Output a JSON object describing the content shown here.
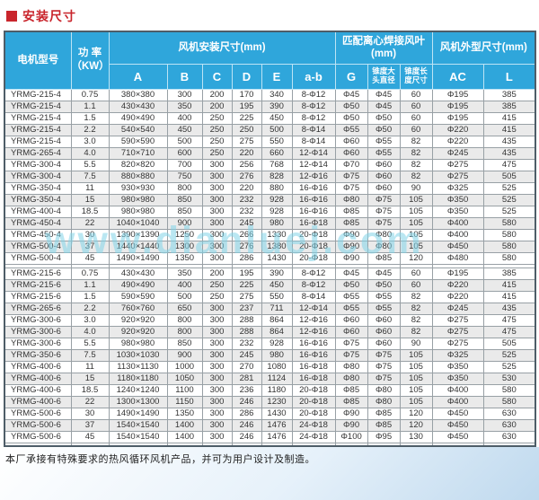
{
  "page": {
    "title": "安装尺寸",
    "watermark": "www.dianluej.com",
    "footer_note": "本厂承接有特殊要求的热风循环风机产品，并可为用户设计及制造。"
  },
  "colors": {
    "header_bg": "#2FA6DB",
    "title_red": "#C9252C",
    "row_alt": "#EAEAEA",
    "outer_border": "#4E5D68",
    "watermark": "#82D4E8"
  },
  "table": {
    "header": {
      "motor_model": "电机型号",
      "power": "功 率\n（KW）",
      "group_install": "风机安装尺寸(mm)",
      "group_blade": "匹配离心焊接风叶\n(mm)",
      "group_outline": "风机外型尺寸(mm)",
      "sub": [
        "A",
        "B",
        "C",
        "D",
        "E",
        "a-b",
        "G",
        "锥度大头直径",
        "锥度长度尺寸",
        "AC",
        "L"
      ]
    },
    "column_keys": [
      "model",
      "power",
      "A",
      "B",
      "C",
      "D",
      "E",
      "a-b",
      "G",
      "cone-diameter",
      "cone-length",
      "AC",
      "L"
    ],
    "groups": [
      {
        "rows": [
          [
            "YRMG-215-4",
            "0.75",
            "380×380",
            "300",
            "200",
            "170",
            "340",
            "8-Φ12",
            "Φ45",
            "Φ45",
            "60",
            "Φ195",
            "385"
          ],
          [
            "YRMG-215-4",
            "1.1",
            "430×430",
            "350",
            "200",
            "195",
            "390",
            "8-Φ12",
            "Φ50",
            "Φ45",
            "60",
            "Φ195",
            "385"
          ],
          [
            "YRMG-215-4",
            "1.5",
            "490×490",
            "400",
            "250",
            "225",
            "450",
            "8-Φ12",
            "Φ50",
            "Φ50",
            "60",
            "Φ195",
            "415"
          ],
          [
            "YRMG-215-4",
            "2.2",
            "540×540",
            "450",
            "250",
            "250",
            "500",
            "8-Φ14",
            "Φ55",
            "Φ50",
            "60",
            "Φ220",
            "415"
          ],
          [
            "YRMG-215-4",
            "3.0",
            "590×590",
            "500",
            "250",
            "275",
            "550",
            "8-Φ14",
            "Φ60",
            "Φ55",
            "82",
            "Φ220",
            "435"
          ],
          [
            "YRMG-265-4",
            "4.0",
            "710×710",
            "600",
            "250",
            "220",
            "660",
            "12-Φ14",
            "Φ60",
            "Φ55",
            "82",
            "Φ245",
            "435"
          ],
          [
            "YRMG-300-4",
            "5.5",
            "820×820",
            "700",
            "300",
            "256",
            "768",
            "12-Φ14",
            "Φ70",
            "Φ60",
            "82",
            "Φ275",
            "475"
          ],
          [
            "YRMG-300-4",
            "7.5",
            "880×880",
            "750",
            "300",
            "276",
            "828",
            "12-Φ16",
            "Φ75",
            "Φ60",
            "82",
            "Φ275",
            "505"
          ],
          [
            "YRMG-350-4",
            "11",
            "930×930",
            "800",
            "300",
            "220",
            "880",
            "16-Φ16",
            "Φ75",
            "Φ60",
            "90",
            "Φ325",
            "525"
          ],
          [
            "YRMG-350-4",
            "15",
            "980×980",
            "850",
            "300",
            "232",
            "928",
            "16-Φ16",
            "Φ80",
            "Φ75",
            "105",
            "Φ350",
            "525"
          ],
          [
            "YRMG-400-4",
            "18.5",
            "980×980",
            "850",
            "300",
            "232",
            "928",
            "16-Φ16",
            "Φ85",
            "Φ75",
            "105",
            "Φ350",
            "525"
          ],
          [
            "YRMG-450-4",
            "22",
            "1040×1040",
            "900",
            "300",
            "245",
            "980",
            "16-Φ18",
            "Φ85",
            "Φ75",
            "105",
            "Φ400",
            "580"
          ],
          [
            "YRMG-450-4",
            "30",
            "1390×1390",
            "1250",
            "300",
            "266",
            "1330",
            "20-Φ18",
            "Φ90",
            "Φ80",
            "105",
            "Φ400",
            "580"
          ],
          [
            "YRMG-500-4",
            "37",
            "1440×1440",
            "1300",
            "300",
            "276",
            "1380",
            "20-Φ18",
            "Φ90",
            "Φ80",
            "105",
            "Φ450",
            "580"
          ],
          [
            "YRMG-500-4",
            "45",
            "1490×1490",
            "1350",
            "300",
            "286",
            "1430",
            "20-Φ18",
            "Φ90",
            "Φ85",
            "120",
            "Φ480",
            "580"
          ]
        ]
      },
      {
        "rows": [
          [
            "YRMG-215-6",
            "0.75",
            "430×430",
            "350",
            "200",
            "195",
            "390",
            "8-Φ12",
            "Φ45",
            "Φ45",
            "60",
            "Φ195",
            "385"
          ],
          [
            "YRMG-215-6",
            "1.1",
            "490×490",
            "400",
            "250",
            "225",
            "450",
            "8-Φ12",
            "Φ50",
            "Φ50",
            "60",
            "Φ220",
            "415"
          ],
          [
            "YRMG-215-6",
            "1.5",
            "590×590",
            "500",
            "250",
            "275",
            "550",
            "8-Φ14",
            "Φ55",
            "Φ55",
            "82",
            "Φ220",
            "415"
          ],
          [
            "YRMG-265-6",
            "2.2",
            "760×760",
            "650",
            "300",
            "237",
            "711",
            "12-Φ14",
            "Φ55",
            "Φ55",
            "82",
            "Φ245",
            "435"
          ],
          [
            "YRMG-300-6",
            "3.0",
            "920×920",
            "800",
            "300",
            "288",
            "864",
            "12-Φ16",
            "Φ60",
            "Φ60",
            "82",
            "Φ275",
            "475"
          ],
          [
            "YRMG-300-6",
            "4.0",
            "920×920",
            "800",
            "300",
            "288",
            "864",
            "12-Φ16",
            "Φ60",
            "Φ60",
            "82",
            "Φ275",
            "475"
          ],
          [
            "YRMG-300-6",
            "5.5",
            "980×980",
            "850",
            "300",
            "232",
            "928",
            "16-Φ16",
            "Φ75",
            "Φ60",
            "90",
            "Φ275",
            "505"
          ],
          [
            "YRMG-350-6",
            "7.5",
            "1030×1030",
            "900",
            "300",
            "245",
            "980",
            "16-Φ16",
            "Φ75",
            "Φ75",
            "105",
            "Φ325",
            "525"
          ],
          [
            "YRMG-400-6",
            "11",
            "1130×1130",
            "1000",
            "300",
            "270",
            "1080",
            "16-Φ18",
            "Φ80",
            "Φ75",
            "105",
            "Φ350",
            "525"
          ],
          [
            "YRMG-400-6",
            "15",
            "1180×1180",
            "1050",
            "300",
            "281",
            "1124",
            "16-Φ18",
            "Φ80",
            "Φ75",
            "105",
            "Φ350",
            "530"
          ],
          [
            "YRMG-400-6",
            "18.5",
            "1240×1240",
            "1100",
            "300",
            "236",
            "1180",
            "20-Φ18",
            "Φ85",
            "Φ80",
            "105",
            "Φ400",
            "580"
          ],
          [
            "YRMG-400-6",
            "22",
            "1300×1300",
            "1150",
            "300",
            "246",
            "1230",
            "20-Φ18",
            "Φ85",
            "Φ80",
            "105",
            "Φ400",
            "580"
          ],
          [
            "YRMG-500-6",
            "30",
            "1490×1490",
            "1350",
            "300",
            "286",
            "1430",
            "20-Φ18",
            "Φ90",
            "Φ85",
            "120",
            "Φ450",
            "630"
          ],
          [
            "YRMG-500-6",
            "37",
            "1540×1540",
            "1400",
            "300",
            "246",
            "1476",
            "24-Φ18",
            "Φ90",
            "Φ85",
            "120",
            "Φ450",
            "630"
          ],
          [
            "YRMG-500-6",
            "45",
            "1540×1540",
            "1400",
            "300",
            "246",
            "1476",
            "24-Φ18",
            "Φ100",
            "Φ95",
            "130",
            "Φ450",
            "630"
          ]
        ]
      }
    ]
  }
}
